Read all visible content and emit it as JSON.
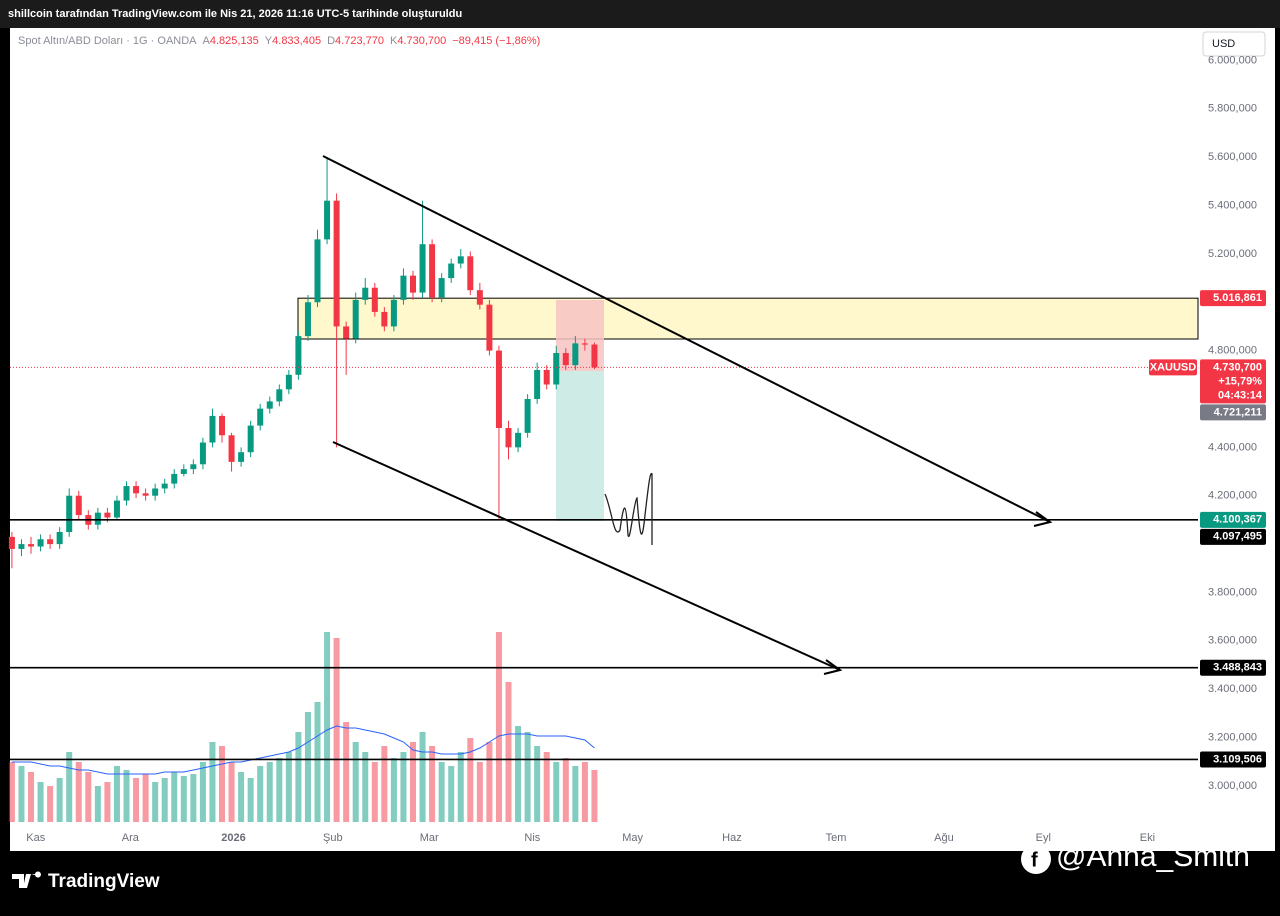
{
  "header": {
    "title": "shillcoin tarafından TradingView.com ile Nis 21, 2026 11:16 UTC-5 tarihinde oluşturuldu"
  },
  "legend": {
    "symbol": "Spot Altın/ABD Doları · 1G · OANDA",
    "fields": [
      {
        "key": "A",
        "value": "4.825,135"
      },
      {
        "key": "Y",
        "value": "4.833,405"
      },
      {
        "key": "D",
        "value": "4.723,770"
      },
      {
        "key": "K",
        "value": "4.730,700"
      }
    ],
    "change": "−89,415 (−1,86%)"
  },
  "currency": "USD",
  "chart_data": {
    "type": "candlestick",
    "open": [
      4030,
      3980,
      4000,
      3990,
      4020,
      4000,
      4050,
      4200,
      4120,
      4080,
      4130,
      4110,
      4180,
      4240,
      4210,
      4200,
      4230,
      4250,
      4290,
      4310,
      4330,
      4420,
      4530,
      4450,
      4340,
      4380,
      4490,
      4560,
      4590,
      4640,
      4700,
      4860,
      5000,
      5260,
      5420,
      4900,
      4850,
      5010,
      5060,
      4960,
      4900,
      5010,
      5110,
      5040,
      5240,
      5020,
      5100,
      5160,
      5190,
      5050,
      4990,
      4800,
      4480,
      4400,
      4460,
      4600,
      4720,
      4660,
      4790,
      4740,
      4830,
      4825.135
    ],
    "high": [
      4050,
      4020,
      4030,
      4040,
      4040,
      4070,
      4230,
      4220,
      4140,
      4150,
      4150,
      4200,
      4260,
      4260,
      4230,
      4250,
      4270,
      4310,
      4330,
      4350,
      4440,
      4560,
      4540,
      4460,
      4400,
      4510,
      4580,
      4610,
      4660,
      4720,
      4880,
      5030,
      5300,
      5600,
      5450,
      4920,
      5040,
      5100,
      5080,
      4980,
      5030,
      5140,
      5130,
      5420,
      5260,
      5120,
      5180,
      5220,
      5210,
      5080,
      5010,
      4820,
      4510,
      4480,
      4620,
      4750,
      4740,
      4820,
      4810,
      4860,
      4850,
      4833.405
    ],
    "low": [
      3900,
      3950,
      3960,
      3970,
      3980,
      3980,
      4030,
      4100,
      4060,
      4060,
      4090,
      4100,
      4160,
      4190,
      4180,
      4180,
      4210,
      4230,
      4280,
      4290,
      4310,
      4400,
      4420,
      4300,
      4320,
      4360,
      4470,
      4540,
      4570,
      4620,
      4680,
      4840,
      4980,
      5240,
      4400,
      4700,
      4830,
      4990,
      4940,
      4880,
      4880,
      4990,
      5010,
      5020,
      5000,
      5000,
      5080,
      5140,
      5030,
      4970,
      4780,
      4100,
      4350,
      4380,
      4440,
      4580,
      4640,
      4640,
      4720,
      4720,
      4800,
      4723.77
    ],
    "close": [
      3980,
      4000,
      3990,
      4020,
      4000,
      4050,
      4200,
      4120,
      4080,
      4130,
      4110,
      4180,
      4240,
      4210,
      4200,
      4230,
      4250,
      4290,
      4310,
      4330,
      4420,
      4530,
      4450,
      4340,
      4380,
      4490,
      4560,
      4590,
      4640,
      4700,
      4860,
      5000,
      5260,
      5420,
      4900,
      4850,
      5010,
      5060,
      4960,
      4900,
      5010,
      5110,
      5040,
      5240,
      5020,
      5100,
      5160,
      5190,
      5050,
      4990,
      4800,
      4480,
      4400,
      4460,
      4600,
      4720,
      4660,
      4790,
      4740,
      4830,
      4825,
      4730.7
    ],
    "up_color": "#089981",
    "down_color": "#f23645",
    "volume": [
      30,
      28,
      25,
      20,
      18,
      22,
      35,
      30,
      25,
      18,
      20,
      28,
      26,
      22,
      24,
      20,
      22,
      25,
      23,
      24,
      30,
      40,
      38,
      30,
      25,
      22,
      28,
      30,
      32,
      35,
      45,
      55,
      60,
      95,
      92,
      50,
      40,
      35,
      30,
      38,
      32,
      35,
      40,
      45,
      38,
      30,
      28,
      35,
      42,
      30,
      40,
      95,
      70,
      48,
      45,
      38,
      35,
      30,
      32,
      28,
      30,
      26
    ],
    "volume_ma": [
      30,
      30,
      30,
      29,
      28,
      28,
      27,
      26,
      26,
      25,
      24,
      24,
      24,
      24,
      24,
      24,
      25,
      25,
      25,
      26,
      27,
      28,
      29,
      30,
      30,
      31,
      32,
      33,
      34,
      35,
      37,
      40,
      43,
      46,
      48,
      47,
      47,
      46,
      45,
      44,
      42,
      40,
      36,
      35,
      35,
      34,
      34,
      34,
      35,
      37,
      40,
      43,
      44,
      44,
      44,
      43,
      43,
      43,
      43,
      42,
      41,
      37
    ],
    "vlim": [
      0,
      100
    ],
    "ma_color": "#2962ff",
    "xlim": [
      -0.2,
      124.2
    ],
    "xticks": [
      {
        "value": 2.5,
        "label": "Kas"
      },
      {
        "value": 12.4,
        "label": "Ara"
      },
      {
        "value": 23.2,
        "label": "2026"
      },
      {
        "value": 33.6,
        "label": "Şub"
      },
      {
        "value": 43.7,
        "label": "Mar"
      },
      {
        "value": 54.5,
        "label": "Nis"
      },
      {
        "value": 65,
        "label": "May"
      },
      {
        "value": 75.4,
        "label": "Haz"
      },
      {
        "value": 86.3,
        "label": "Tem"
      },
      {
        "value": 97.6,
        "label": "Ağu"
      },
      {
        "value": 108,
        "label": "Eyl"
      },
      {
        "value": 118.9,
        "label": "Eki"
      }
    ],
    "ylim": [
      2731,
      6134
    ],
    "yticks": [
      {
        "value": 6000,
        "label": "6.000,000"
      },
      {
        "value": 5800,
        "label": "5.800,000"
      },
      {
        "value": 5600,
        "label": "5.600,000"
      },
      {
        "value": 5400,
        "label": "5.400,000"
      },
      {
        "value": 5200,
        "label": "5.200,000"
      },
      {
        "value": 4800,
        "label": "4.800,000"
      },
      {
        "value": 4400,
        "label": "4.400,000"
      },
      {
        "value": 4200,
        "label": "4.200,000"
      },
      {
        "value": 3800,
        "label": "3.800,000"
      },
      {
        "value": 3600,
        "label": "3.600,000"
      },
      {
        "value": 3400,
        "label": "3.400,000"
      },
      {
        "value": 3200,
        "label": "3.200,000"
      },
      {
        "value": 3000,
        "label": "3.000,000"
      }
    ],
    "levels": [
      {
        "value": 5016.861,
        "label": "5.016,861",
        "color": "#f23645",
        "line": false,
        "zone": true
      },
      {
        "value": 4100.367,
        "label": "4.100,367",
        "color": "#089981",
        "line": true
      },
      {
        "value": 4097.495,
        "label": "4.097,495",
        "color": "#000000",
        "line": false
      },
      {
        "value": 3488.843,
        "label": "3.488,843",
        "color": "#000000",
        "line": true
      },
      {
        "value": 3109.506,
        "label": "3.109,506",
        "color": "#000000",
        "line": true
      }
    ],
    "last": {
      "symbol": "XAUUSD",
      "value": 4730.7,
      "label": "4.730,700",
      "change": "+15,79%",
      "countdown": "04:43:14",
      "color": "#f23645"
    },
    "other_price": {
      "value": 4721.211,
      "label": "4.721,211",
      "color": "#787b86"
    }
  },
  "footer": {
    "brand": "TradingView",
    "watermark": "@Anna_Smith"
  }
}
